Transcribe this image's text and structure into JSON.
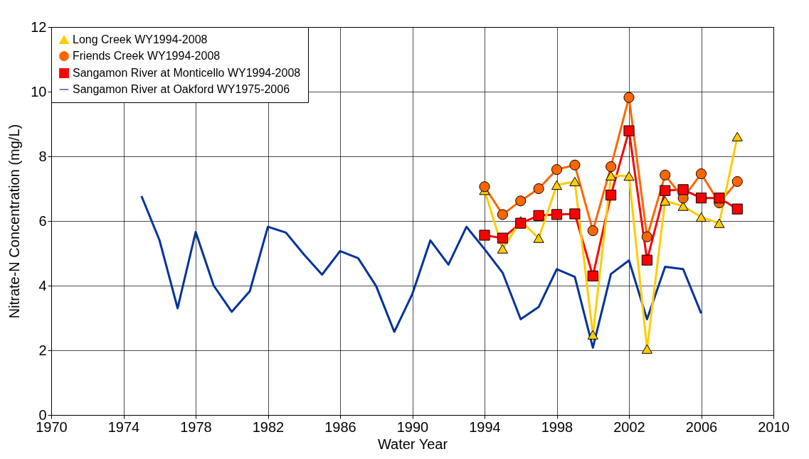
{
  "chart_data": {
    "type": "line",
    "xlabel": "Water Year",
    "ylabel": "Nitrate-N Concentration (mg/L)",
    "xlim": [
      1970,
      2010
    ],
    "xticks": [
      1970,
      1974,
      1978,
      1982,
      1986,
      1990,
      1994,
      1998,
      2002,
      2006,
      2010
    ],
    "ylim": [
      0,
      12
    ],
    "yticks": [
      0,
      2,
      4,
      6,
      8,
      10,
      12
    ],
    "grid": true,
    "legend": "top left",
    "series": [
      {
        "name": "Long Creek WY1994-2008",
        "color": "#ffcc00",
        "marker": "triangle",
        "x": [
          1994,
          1995,
          1996,
          1997,
          1998,
          1999,
          2000,
          2001,
          2002,
          2003,
          2004,
          2005,
          2006,
          2007,
          2008
        ],
        "values": [
          6.95,
          5.14,
          6.0,
          5.47,
          7.11,
          7.22,
          2.48,
          7.4,
          7.39,
          2.04,
          6.62,
          6.46,
          6.12,
          5.93,
          8.61
        ]
      },
      {
        "name": "Friends Creek WY1994-2008",
        "color": "#ff6600",
        "marker": "circle",
        "x": [
          1994,
          1995,
          1996,
          1997,
          1998,
          1999,
          2000,
          2001,
          2002,
          2003,
          2004,
          2005,
          2006,
          2007,
          2008
        ],
        "values": [
          7.06,
          6.2,
          6.62,
          7.0,
          7.59,
          7.73,
          5.7,
          7.68,
          9.82,
          5.51,
          7.42,
          6.71,
          7.46,
          6.56,
          7.22
        ]
      },
      {
        "name": "Sangamon River at Monticello WY1994-2008",
        "color": "#ff0000",
        "marker": "square",
        "x": [
          1994,
          1995,
          1996,
          1997,
          1998,
          1999,
          2000,
          2001,
          2002,
          2003,
          2004,
          2005,
          2006,
          2007,
          2008
        ],
        "values": [
          5.56,
          5.47,
          5.93,
          6.17,
          6.2,
          6.22,
          4.3,
          6.8,
          8.79,
          4.79,
          6.94,
          6.97,
          6.71,
          6.71,
          6.37
        ]
      },
      {
        "name": "Sangamon River at Oakford WY1975-2006",
        "color": "#003399",
        "marker": "none",
        "x": [
          1975,
          1976,
          1977,
          1978,
          1979,
          1980,
          1981,
          1982,
          1983,
          1984,
          1985,
          1986,
          1987,
          1988,
          1989,
          1990,
          1991,
          1992,
          1993,
          1994,
          1995,
          1996,
          1997,
          1998,
          1999,
          2000,
          2001,
          2002,
          2003,
          2004,
          2005,
          2006
        ],
        "values": [
          6.77,
          5.4,
          3.3,
          5.66,
          4.0,
          3.19,
          3.83,
          5.82,
          5.64,
          4.96,
          4.34,
          5.07,
          4.85,
          3.98,
          2.57,
          3.74,
          5.4,
          4.65,
          5.82,
          5.13,
          4.4,
          2.96,
          3.34,
          4.51,
          4.27,
          2.08,
          4.36,
          4.78,
          2.96,
          4.58,
          4.51,
          3.14
        ]
      }
    ]
  }
}
